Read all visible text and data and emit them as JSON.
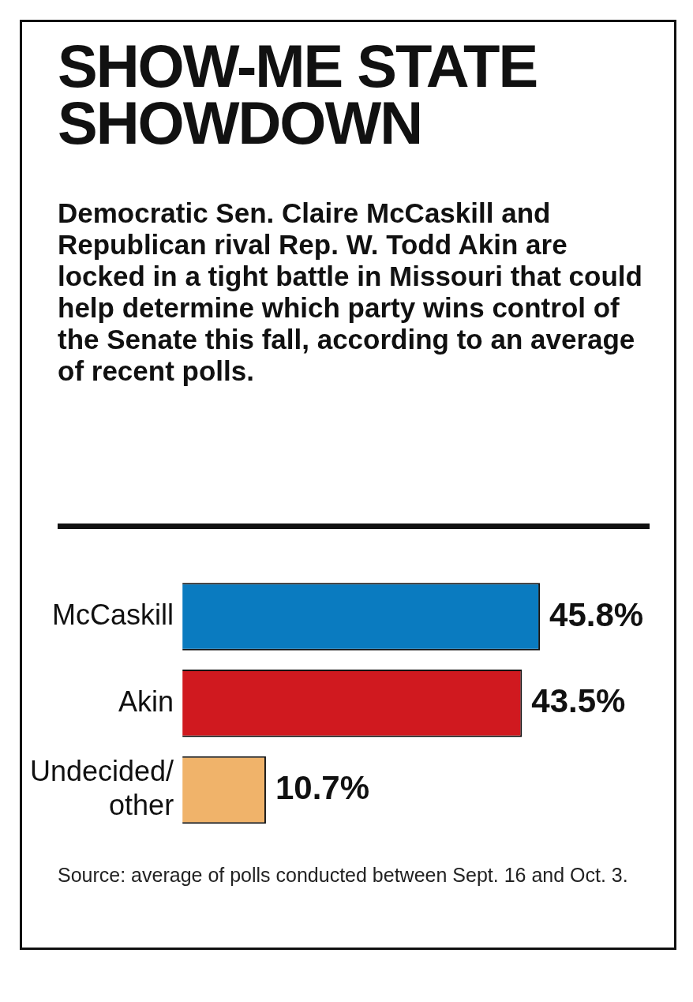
{
  "chart_data": {
    "type": "bar",
    "orientation": "horizontal",
    "title": "SHOW-ME STATE SHOWDOWN",
    "subtitle": "Democratic Sen. Claire McCaskill and Republican rival Rep. W. Todd Akin are locked in a tight battle in Missouri that could help determine which party wins control of the Senate this fall, according to an average of recent polls.",
    "categories": [
      "McCaskill",
      "Akin",
      "Undecided/other"
    ],
    "values": [
      45.8,
      43.5,
      10.7
    ],
    "colors": [
      "#0a7bc0",
      "#d0191f",
      "#f0b36a"
    ],
    "value_labels": [
      "45.8%",
      "43.5%",
      "10.7%"
    ],
    "annotations": [
      "Source: average of polls conducted between Sept. 16 and Oct. 3."
    ]
  }
}
